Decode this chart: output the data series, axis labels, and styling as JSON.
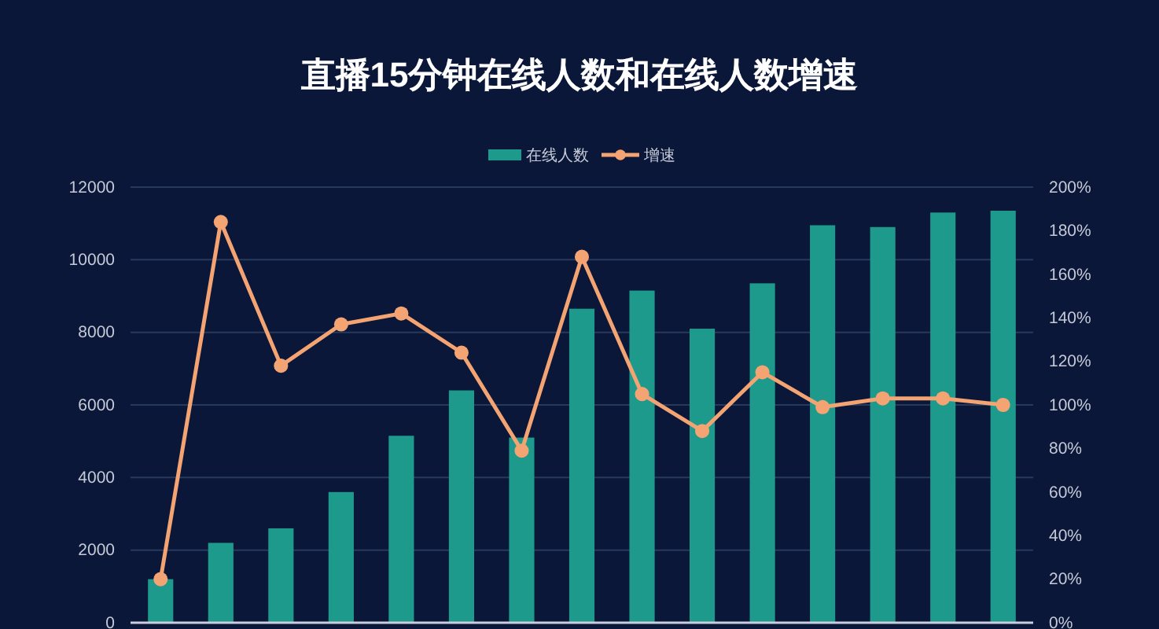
{
  "chart_data": {
    "type": "bar",
    "title": "直播15分钟在线人数和在线人数增速",
    "categories": [
      null,
      null,
      null,
      null,
      null,
      null,
      null,
      null,
      null,
      null,
      null,
      null,
      null,
      null,
      null
    ],
    "series": [
      {
        "name": "在线人数",
        "color": "#1e9a8c",
        "values": [
          1200,
          2200,
          2600,
          3600,
          5150,
          6400,
          5100,
          8650,
          9150,
          8100,
          9350,
          10950,
          10900,
          11300,
          11350
        ]
      },
      {
        "name": "增速",
        "type": "line",
        "axis": "y2",
        "color": "#f4a373",
        "values": [
          20,
          184,
          118,
          137,
          142,
          124,
          79,
          168,
          105,
          88,
          115,
          99,
          103,
          103,
          100
        ]
      }
    ],
    "ylim": [
      0,
      12000
    ],
    "yticks": [
      0,
      2000,
      4000,
      6000,
      8000,
      10000,
      12000
    ],
    "y2lim": [
      0,
      200
    ],
    "y2ticks": [
      {
        "value": 0,
        "label": "0%"
      },
      {
        "value": 20,
        "label": "20%"
      },
      {
        "value": 40,
        "label": "40%"
      },
      {
        "value": 60,
        "label": "60%"
      },
      {
        "value": 80,
        "label": "80%"
      },
      {
        "value": 100,
        "label": "100%"
      },
      {
        "value": 120,
        "label": "120%"
      },
      {
        "value": 140,
        "label": "140%"
      },
      {
        "value": 160,
        "label": "160%"
      },
      {
        "value": 180,
        "label": "180%"
      },
      {
        "value": 200,
        "label": "200%"
      }
    ],
    "grid": "y",
    "legend": "top",
    "marker": "circle"
  }
}
